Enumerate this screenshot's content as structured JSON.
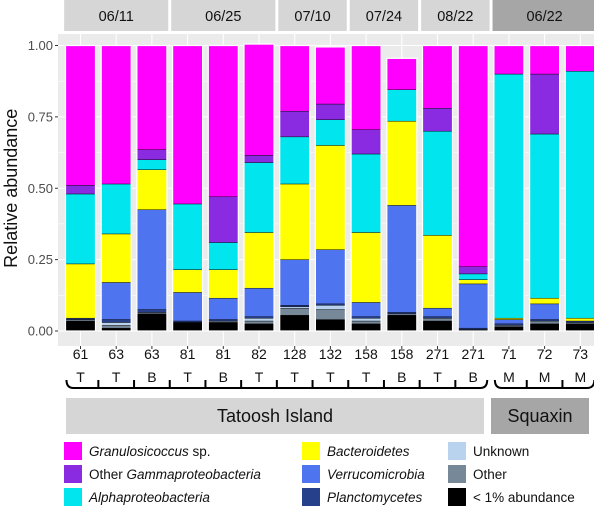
{
  "chart_data": {
    "type": "bar",
    "stacked": true,
    "ylabel": "Relative abundance",
    "ylim": [
      0,
      1
    ],
    "y_ticks": [
      "0.00",
      "0.25",
      "0.50",
      "0.75",
      "1.00"
    ],
    "y_tick_values": [
      0,
      0.25,
      0.5,
      0.75,
      1.0
    ],
    "grid": true,
    "date_groups": [
      {
        "label": "06/11",
        "first": 0,
        "last": 2,
        "color": "#d6d6d6"
      },
      {
        "label": "06/25",
        "first": 3,
        "last": 5,
        "color": "#d6d6d6"
      },
      {
        "label": "07/10",
        "first": 6,
        "last": 7,
        "color": "#d6d6d6"
      },
      {
        "label": "07/24",
        "first": 8,
        "last": 9,
        "color": "#d6d6d6"
      },
      {
        "label": "08/22",
        "first": 10,
        "last": 11,
        "color": "#d6d6d6"
      },
      {
        "label": "06/22",
        "first": 12,
        "last": 14,
        "color": "#a6a6a6"
      }
    ],
    "categories": [
      "61",
      "63",
      "63",
      "81",
      "81",
      "82",
      "128",
      "132",
      "158",
      "158",
      "271",
      "271",
      "71",
      "72",
      "73"
    ],
    "sublabels": [
      "T",
      "T",
      "B",
      "T",
      "B",
      "T",
      "T",
      "T",
      "T",
      "B",
      "T",
      "B",
      "M",
      "M",
      "M"
    ],
    "site_groups": [
      {
        "label": "Tatoosh Island",
        "first": 0,
        "last": 11,
        "color": "#d6d6d6"
      },
      {
        "label": "Squaxin",
        "first": 12,
        "last": 14,
        "color": "#a6a6a6"
      }
    ],
    "series": [
      {
        "name": "< 1% abundance",
        "color": "#000000",
        "values": [
          0.035,
          0.01,
          0.06,
          0.03,
          0.03,
          0.025,
          0.055,
          0.04,
          0.025,
          0.055,
          0.035,
          0.005,
          0.015,
          0.025,
          0.025
        ]
      },
      {
        "name": "Other",
        "color": "#778899",
        "values": [
          0.005,
          0.01,
          0.005,
          0.0,
          0.005,
          0.01,
          0.025,
          0.035,
          0.01,
          0.005,
          0.01,
          0.0,
          0.005,
          0.01,
          0.005
        ]
      },
      {
        "name": "Unknown",
        "color": "#b9d3ee",
        "values": [
          0.0,
          0.01,
          0.0,
          0.0,
          0.0,
          0.01,
          0.005,
          0.015,
          0.01,
          0.0,
          0.0,
          0.0,
          0.0,
          0.0,
          0.0
        ]
      },
      {
        "name": "Planctomycetes",
        "color": "#27408b",
        "values": [
          0.005,
          0.01,
          0.01,
          0.005,
          0.005,
          0.005,
          0.005,
          0.005,
          0.005,
          0.005,
          0.005,
          0.005,
          0.005,
          0.005,
          0.005
        ]
      },
      {
        "name": "Verrucomicrobia",
        "color": "#4f74f0",
        "values": [
          0.0,
          0.13,
          0.35,
          0.1,
          0.075,
          0.1,
          0.16,
          0.19,
          0.05,
          0.375,
          0.03,
          0.155,
          0.015,
          0.055,
          0.0
        ]
      },
      {
        "name": "Bacteroidetes",
        "color": "#ffff00",
        "values": [
          0.19,
          0.17,
          0.14,
          0.08,
          0.1,
          0.195,
          0.265,
          0.365,
          0.245,
          0.295,
          0.255,
          0.015,
          0.005,
          0.02,
          0.01
        ]
      },
      {
        "name": "Alphaproteobacteria",
        "color": "#00e5ee",
        "values": [
          0.245,
          0.175,
          0.035,
          0.23,
          0.095,
          0.245,
          0.165,
          0.09,
          0.275,
          0.11,
          0.365,
          0.02,
          0.855,
          0.575,
          0.865
        ]
      },
      {
        "name": "Other Gammaproteobacteria",
        "color": "#8a2be2",
        "values": [
          0.03,
          0.0,
          0.035,
          0.0,
          0.16,
          0.025,
          0.09,
          0.055,
          0.085,
          0.0,
          0.08,
          0.025,
          0.0,
          0.21,
          0.0
        ]
      },
      {
        "name": "Granulosicoccus sp.",
        "color": "#ff00ff",
        "values": [
          0.49,
          0.485,
          0.365,
          0.555,
          0.53,
          0.39,
          0.23,
          0.2,
          0.295,
          0.11,
          0.22,
          0.775,
          0.1,
          0.1,
          0.09
        ]
      }
    ],
    "legend": {
      "placement": "bottom",
      "items": [
        {
          "label": "Granulosicoccus",
          "suffix": " sp.",
          "color": "#ff00ff"
        },
        {
          "label": "Other ",
          "suffix": "Gammaproteobacteria",
          "color": "#8a2be2",
          "italic_part": "suffix"
        },
        {
          "label": "Alphaproteobacteria",
          "suffix": "",
          "color": "#00e5ee"
        },
        {
          "label": "Bacteroidetes",
          "suffix": "",
          "color": "#ffff00"
        },
        {
          "label": "Verrucomicrobia",
          "suffix": "",
          "color": "#4f74f0"
        },
        {
          "label": "Planctomycetes",
          "suffix": "",
          "color": "#27408b"
        },
        {
          "label": "Unknown",
          "suffix": "",
          "color": "#b9d3ee",
          "italic": false
        },
        {
          "label": "Other",
          "suffix": "",
          "color": "#778899",
          "italic": false
        },
        {
          "label": "< 1% abundance",
          "suffix": "",
          "color": "#000000",
          "italic": false
        }
      ]
    },
    "panel_background": "#ebebeb",
    "grid_color": "#ffffff"
  }
}
